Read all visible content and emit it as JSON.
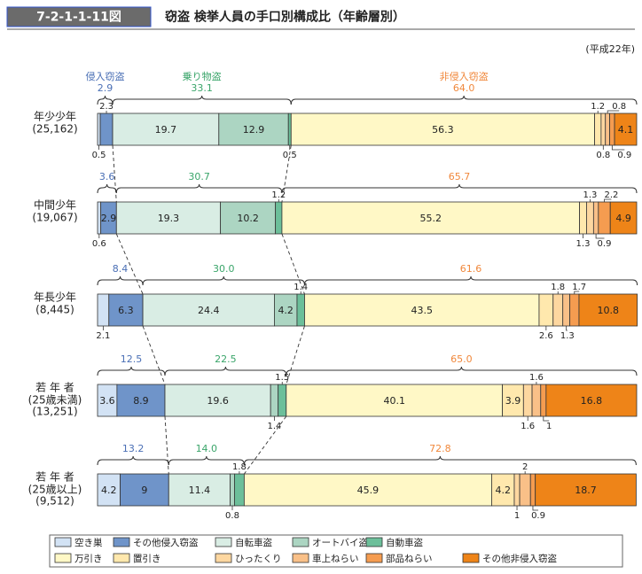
{
  "chart_data": {
    "type": "bar",
    "orientation": "horizontal",
    "stacked": true,
    "figure_number": "7-2-1-1-11図",
    "title": "窃盗 検挙人員の手口別構成比（年齢層別）",
    "note": "(平成22年)",
    "xlim": [
      0,
      100
    ],
    "categories": [
      "年少少年",
      "中間少年",
      "年長少年",
      "若 年 者",
      "若 年 者"
    ],
    "category_notes": [
      [
        "(25,162)"
      ],
      [
        "(19,067)"
      ],
      [
        "(8,445)"
      ],
      [
        "(25歳未満)",
        "(13,251)"
      ],
      [
        "(25歳以上)",
        "(9,512)"
      ]
    ],
    "groups": [
      {
        "name": "侵入窃盗",
        "color": "#4a6fb5",
        "values": [
          2.9,
          3.6,
          8.4,
          12.5,
          13.2
        ],
        "series": [
          {
            "name": "空き巣",
            "color": "#d2e2f4",
            "values": [
              0.5,
              0.6,
              2.1,
              3.6,
              4.2
            ]
          },
          {
            "name": "その他侵入窃盗",
            "color": "#6f94c9",
            "values": [
              2.3,
              2.9,
              6.3,
              8.9,
              9.0
            ]
          }
        ]
      },
      {
        "name": "乗り物盗",
        "color": "#3aa56a",
        "values": [
          33.1,
          30.7,
          30,
          22.5,
          14
        ],
        "value_labels": [
          "33.1",
          "30.7",
          "30.0",
          "22.5",
          "14.0"
        ],
        "series": [
          {
            "name": "自転車盗",
            "color": "#d9ede4",
            "values": [
              19.7,
              19.3,
              24.4,
              19.6,
              11.4
            ]
          },
          {
            "name": "オートバイ盗",
            "color": "#acd5c2",
            "values": [
              12.9,
              10.2,
              4.2,
              1.4,
              0.8
            ]
          },
          {
            "name": "自動車盗",
            "color": "#6cbf9a",
            "values": [
              0.5,
              1.2,
              1.4,
              1.5,
              1.8
            ]
          }
        ]
      },
      {
        "name": "非侵入窃盗",
        "color": "#f0883c",
        "values": [
          64,
          65.7,
          61.6,
          65,
          72.8
        ],
        "value_labels": [
          "64.0",
          "65.7",
          "61.6",
          "65.0",
          "72.8"
        ],
        "series": [
          {
            "name": "万引き",
            "color": "#fff8c6",
            "values": [
              56.3,
              55.2,
              43.5,
              40.1,
              45.9
            ]
          },
          {
            "name": "置引き",
            "color": "#ffe8ad",
            "values": [
              1.2,
              1.3,
              2.6,
              3.9,
              4.2
            ]
          },
          {
            "name": "ひったくり",
            "color": "#fdd7a0",
            "values": [
              0.8,
              1.3,
              1.8,
              1.6,
              1.0
            ]
          },
          {
            "name": "車上ねらい",
            "color": "#f9c088",
            "values": [
              0.8,
              0.9,
              1.3,
              1.6,
              2.0
            ]
          },
          {
            "name": "部品ねらい",
            "color": "#f59c50",
            "values": [
              0.9,
              2.2,
              1.7,
              1.0,
              0.9
            ]
          },
          {
            "name": "その他非侵入窃盗",
            "color": "#ee8418",
            "values": [
              4.1,
              4.9,
              10.8,
              16.8,
              18.7
            ]
          }
        ]
      }
    ]
  }
}
